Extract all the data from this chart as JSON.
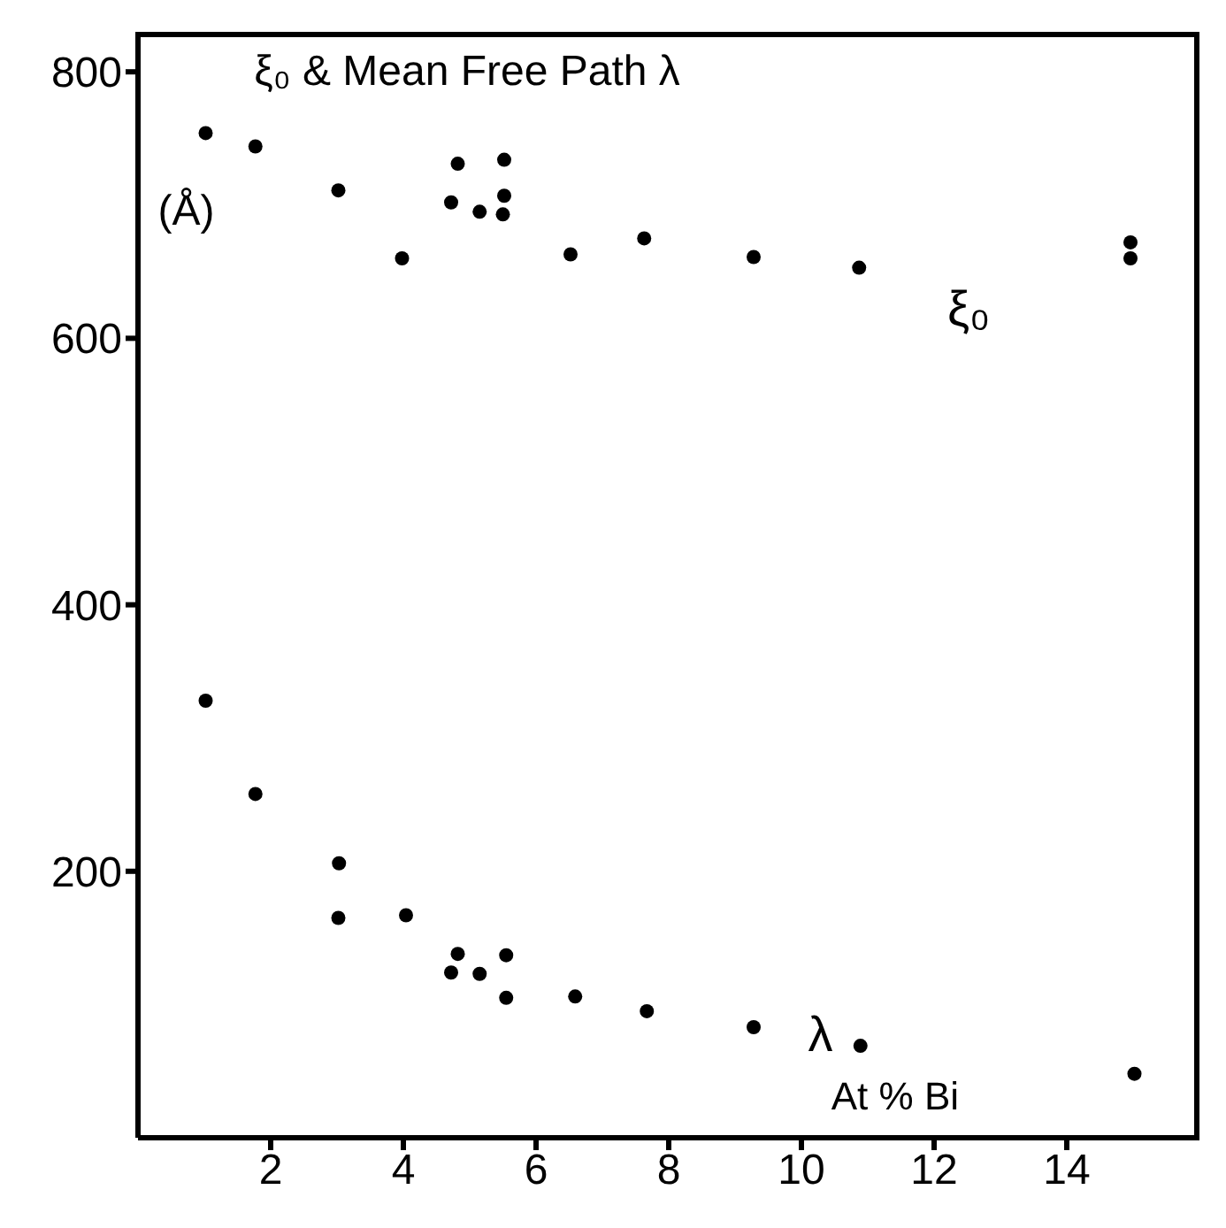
{
  "chart_data": {
    "type": "scatter",
    "title": "ξ₀ & Mean Free Path λ",
    "xlabel": "At % Bi",
    "ylabel": "(Å)",
    "marker": "circle",
    "xlim": [
      0,
      16
    ],
    "xticks": [
      2,
      4,
      6,
      8,
      10,
      12,
      14
    ],
    "ylim": [
      0,
      830
    ],
    "yticks": [
      200,
      400,
      600,
      800
    ],
    "series": [
      {
        "name": "ξ₀",
        "color": "#000000",
        "x": [
          1.02,
          1.77,
          3.02,
          3.98,
          4.82,
          4.72,
          5.15,
          5.52,
          5.52,
          5.5,
          6.52,
          7.63,
          9.28,
          10.87,
          14.96,
          14.96
        ],
        "values": [
          754,
          744,
          711,
          660,
          731,
          702,
          695,
          734,
          707,
          693,
          663,
          675,
          661,
          653,
          672,
          660
        ]
      },
      {
        "name": "λ",
        "color": "#000000",
        "x": [
          1.02,
          1.77,
          3.03,
          3.02,
          4.04,
          4.82,
          4.72,
          5.15,
          5.55,
          5.55,
          6.59,
          7.67,
          9.28,
          10.89,
          15.02
        ],
        "values": [
          328,
          258,
          206,
          165,
          167,
          138,
          124,
          123,
          137,
          105,
          106,
          95,
          83,
          69,
          48
        ]
      }
    ]
  }
}
